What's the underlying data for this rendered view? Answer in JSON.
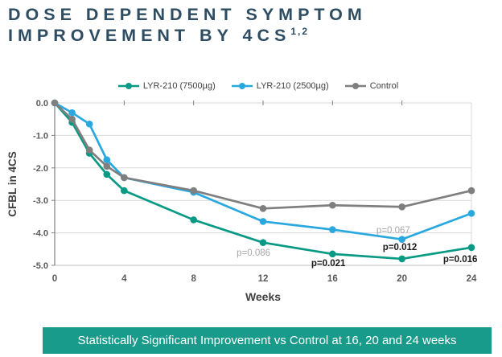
{
  "title": {
    "line1": "DOSE DEPENDENT SYMPTOM",
    "line2": "IMPROVEMENT BY 4CS",
    "superscript": "1,2",
    "color": "#2e4d62"
  },
  "banner": {
    "text": "Statistically Significant Improvement vs Control at 16, 20 and 24 weeks",
    "background": "#189b8b",
    "text_color": "#ffffff"
  },
  "chart_data": {
    "type": "line",
    "x": [
      0,
      1,
      2,
      3,
      4,
      8,
      12,
      16,
      20,
      24
    ],
    "xlabel": "Weeks",
    "ylabel": "CFBL in 4CS",
    "xlim": [
      0,
      24
    ],
    "ylim": [
      -5,
      0
    ],
    "x_tick_labels": [
      "0",
      "4",
      "8",
      "12",
      "16",
      "20",
      "24"
    ],
    "x_tick_weeks": [
      0,
      4,
      8,
      12,
      16,
      20,
      24
    ],
    "y_tick_labels": [
      "0.0",
      "-1.0",
      "-2.0",
      "-3.0",
      "-4.0",
      "-5.0"
    ],
    "y_tick_values": [
      0,
      -1,
      -2,
      -3,
      -4,
      -5
    ],
    "grid": true,
    "legend_position": "top",
    "series": [
      {
        "name": "LYR-210 (7500µg)",
        "color": "#089a84",
        "values": [
          0,
          -0.6,
          -1.55,
          -2.2,
          -2.7,
          -3.6,
          -4.3,
          -4.65,
          -4.8,
          -4.45
        ]
      },
      {
        "name": "LYR-210 (2500µg)",
        "color": "#29a8e0",
        "values": [
          0,
          -0.3,
          -0.65,
          -1.75,
          -2.3,
          -2.75,
          -3.65,
          -3.9,
          -4.2,
          -3.4
        ]
      },
      {
        "name": "Control",
        "color": "#7f7f7f",
        "values": [
          0,
          -0.5,
          -1.45,
          -1.95,
          -2.3,
          -2.7,
          -3.25,
          -3.15,
          -3.2,
          -2.7
        ]
      }
    ],
    "annotations": [
      {
        "text": "p=0.086",
        "week": 11.45,
        "value": -4.6,
        "color": "#a6a6a6",
        "bold": false
      },
      {
        "text": "p=0.021",
        "week": 15.76,
        "value": -4.93,
        "color": "#1a1a1a",
        "bold": true
      },
      {
        "text": "p=0.067",
        "week": 19.5,
        "value": -3.91,
        "color": "#a6a6a6",
        "bold": false
      },
      {
        "text": "p=0.012",
        "week": 19.88,
        "value": -4.43,
        "color": "#1a1a1a",
        "bold": true
      },
      {
        "text": "p=0.016",
        "week": 23.36,
        "value": -4.8,
        "color": "#1a1a1a",
        "bold": true
      }
    ],
    "style": {
      "grid_color": "#d9d9d9",
      "axis_color": "#7f7f7f",
      "bottom_line_color": "#bfbfbf",
      "tick_label_color": "#595959",
      "axis_title_color": "#404040"
    }
  }
}
